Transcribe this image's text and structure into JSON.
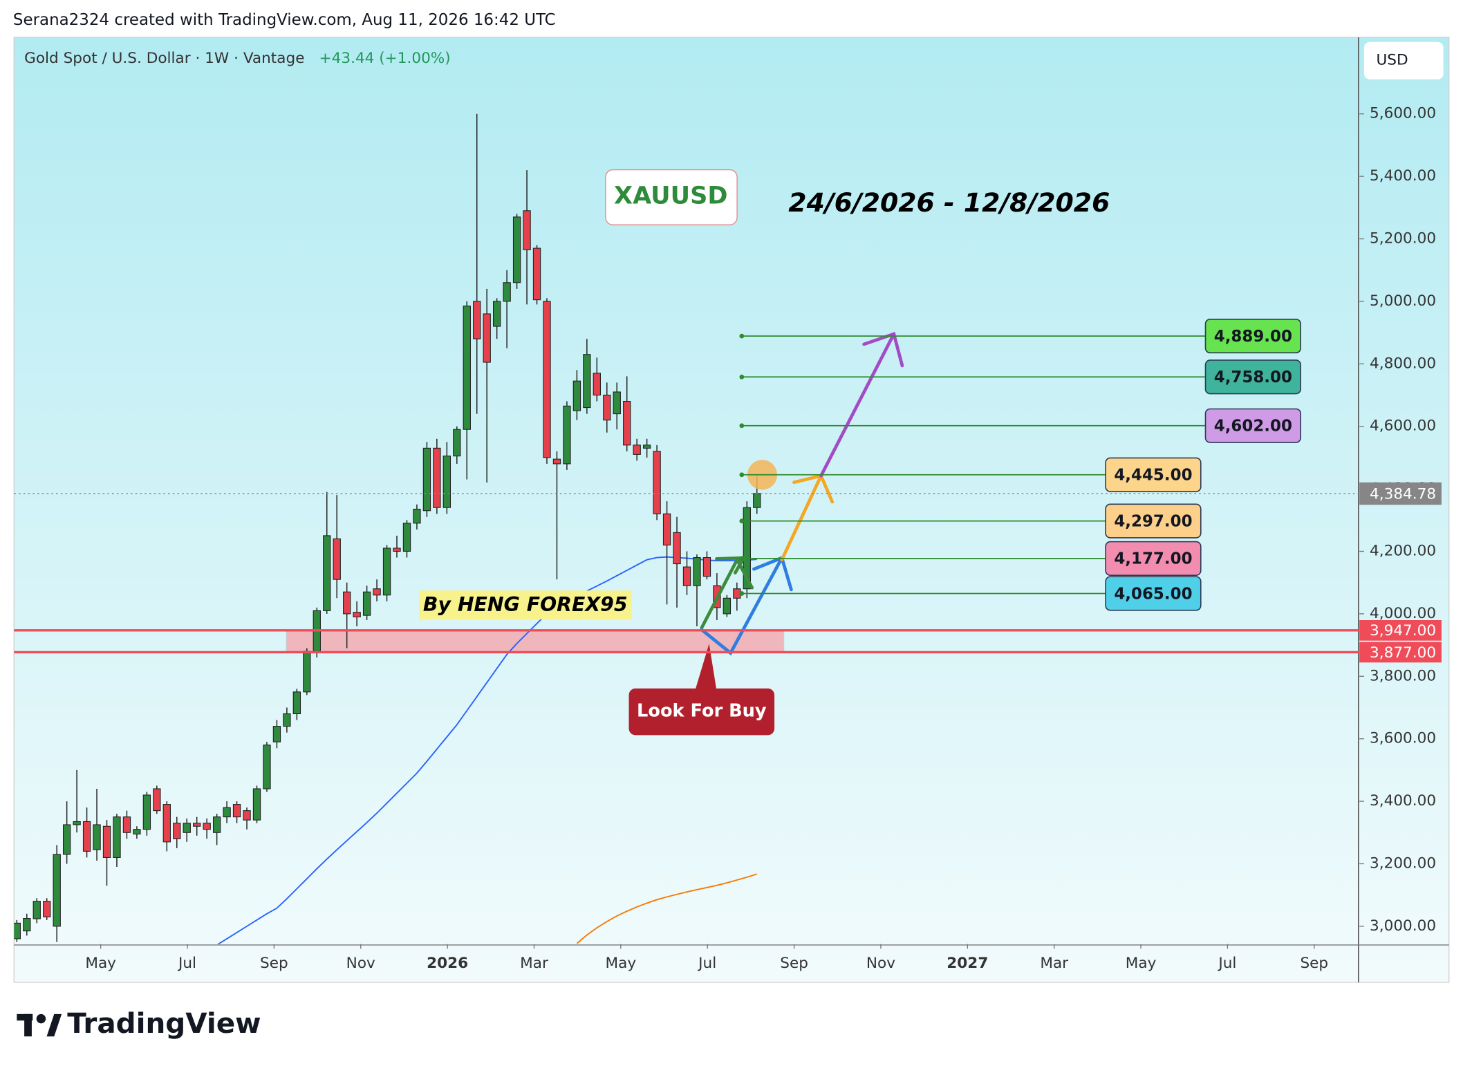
{
  "header": "Serana2324 created with TradingView.com, Aug 11, 2026 16:42 UTC",
  "brand": "TradingView",
  "chart_data": {
    "type": "candlestick",
    "title": "Gold Spot / U.S. Dollar · 1W · Vantage",
    "change": "+43.44 (+1.00%)",
    "currency": "USD",
    "up_color": "#2e8b3e",
    "down_color": "#e5414d",
    "candles": [
      [
        2960,
        3020,
        2950,
        3010
      ],
      [
        2985,
        3040,
        2970,
        3025
      ],
      [
        3024,
        3090,
        3010,
        3080
      ],
      [
        3080,
        3090,
        3020,
        3030
      ],
      [
        3000,
        3260,
        2950,
        3230
      ],
      [
        3230,
        3400,
        3200,
        3325
      ],
      [
        3325,
        3500,
        3300,
        3335
      ],
      [
        3335,
        3380,
        3220,
        3240
      ],
      [
        3245,
        3440,
        3210,
        3325
      ],
      [
        3320,
        3340,
        3130,
        3220
      ],
      [
        3220,
        3360,
        3190,
        3350
      ],
      [
        3350,
        3370,
        3280,
        3300
      ],
      [
        3295,
        3320,
        3280,
        3310
      ],
      [
        3310,
        3430,
        3290,
        3420
      ],
      [
        3440,
        3450,
        3360,
        3370
      ],
      [
        3390,
        3400,
        3240,
        3270
      ],
      [
        3330,
        3350,
        3250,
        3280
      ],
      [
        3300,
        3345,
        3270,
        3330
      ],
      [
        3330,
        3350,
        3290,
        3320
      ],
      [
        3330,
        3345,
        3280,
        3310
      ],
      [
        3300,
        3360,
        3260,
        3350
      ],
      [
        3350,
        3400,
        3330,
        3380
      ],
      [
        3390,
        3400,
        3330,
        3350
      ],
      [
        3370,
        3380,
        3310,
        3340
      ],
      [
        3340,
        3450,
        3330,
        3440
      ],
      [
        3440,
        3590,
        3430,
        3580
      ],
      [
        3590,
        3660,
        3570,
        3640
      ],
      [
        3640,
        3700,
        3620,
        3680
      ],
      [
        3680,
        3760,
        3660,
        3750
      ],
      [
        3750,
        3890,
        3740,
        3880
      ],
      [
        3880,
        4020,
        3860,
        4010
      ],
      [
        4010,
        4390,
        4000,
        4250
      ],
      [
        4240,
        4380,
        4050,
        4110
      ],
      [
        4070,
        4100,
        3890,
        4000
      ],
      [
        4005,
        4040,
        3960,
        3990
      ],
      [
        3995,
        4090,
        3980,
        4070
      ],
      [
        4080,
        4110,
        4040,
        4060
      ],
      [
        4060,
        4220,
        4040,
        4210
      ],
      [
        4210,
        4250,
        4180,
        4200
      ],
      [
        4200,
        4300,
        4180,
        4290
      ],
      [
        4290,
        4350,
        4270,
        4335
      ],
      [
        4330,
        4550,
        4310,
        4530
      ],
      [
        4530,
        4560,
        4320,
        4340
      ],
      [
        4340,
        4550,
        4320,
        4505
      ],
      [
        4505,
        4600,
        4480,
        4590
      ],
      [
        4590,
        5000,
        4430,
        4985
      ],
      [
        5000,
        5600,
        4640,
        4880
      ],
      [
        4960,
        5040,
        4420,
        4805
      ],
      [
        4920,
        5010,
        4880,
        5000
      ],
      [
        5000,
        5100,
        4850,
        5060
      ],
      [
        5060,
        5280,
        5040,
        5270
      ],
      [
        5290,
        5420,
        4990,
        5165
      ],
      [
        5170,
        5180,
        4990,
        5005
      ],
      [
        5000,
        5010,
        4480,
        4500
      ],
      [
        4495,
        4520,
        4110,
        4480
      ],
      [
        4480,
        4680,
        4460,
        4665
      ],
      [
        4650,
        4780,
        4620,
        4745
      ],
      [
        4660,
        4880,
        4640,
        4830
      ],
      [
        4770,
        4820,
        4680,
        4700
      ],
      [
        4700,
        4740,
        4580,
        4620
      ],
      [
        4640,
        4740,
        4590,
        4710
      ],
      [
        4680,
        4760,
        4520,
        4540
      ],
      [
        4540,
        4560,
        4490,
        4510
      ],
      [
        4530,
        4560,
        4500,
        4540
      ],
      [
        4520,
        4540,
        4300,
        4320
      ],
      [
        4320,
        4360,
        4030,
        4220
      ],
      [
        4260,
        4310,
        4020,
        4160
      ],
      [
        4150,
        4200,
        4060,
        4090
      ],
      [
        4090,
        4190,
        3960,
        4180
      ],
      [
        4180,
        4200,
        4110,
        4120
      ],
      [
        4090,
        4130,
        3980,
        4020
      ],
      [
        4000,
        4060,
        3990,
        4050
      ],
      [
        4080,
        4100,
        4010,
        4050
      ],
      [
        4080,
        4360,
        4050,
        4340
      ],
      [
        4340,
        4440,
        4320,
        4385
      ]
    ],
    "moving_averages": [
      {
        "color": "#2962ff",
        "values": [
          null,
          null,
          null,
          null,
          null,
          null,
          null,
          null,
          null,
          null,
          null,
          null,
          null,
          null,
          null,
          null,
          null,
          null,
          null,
          null,
          2940,
          2960,
          2980,
          3000,
          3020,
          3040,
          3058,
          3088,
          3120,
          3152,
          3184,
          3215,
          3245,
          3274,
          3303,
          3332,
          3362,
          3394,
          3426,
          3458,
          3490,
          3528,
          3567,
          3606,
          3645,
          3690,
          3735,
          3780,
          3825,
          3870,
          3905,
          3937,
          3969,
          4000,
          4025,
          4041,
          4057,
          4073,
          4089,
          4105,
          4122,
          4139,
          4156,
          4173,
          4180,
          4182,
          4180,
          4178,
          4175,
          4172,
          4170,
          4170,
          4171,
          4172,
          4174
        ]
      },
      {
        "color": "#f57c00",
        "values": [
          null,
          null,
          null,
          null,
          null,
          null,
          null,
          null,
          null,
          null,
          null,
          null,
          null,
          null,
          null,
          null,
          null,
          null,
          null,
          null,
          null,
          null,
          null,
          null,
          null,
          null,
          null,
          null,
          null,
          null,
          null,
          null,
          null,
          null,
          null,
          null,
          null,
          null,
          null,
          null,
          null,
          null,
          null,
          null,
          null,
          null,
          null,
          null,
          null,
          null,
          null,
          null,
          null,
          null,
          null,
          null,
          2945,
          2972,
          2995,
          3015,
          3033,
          3048,
          3062,
          3074,
          3085,
          3094,
          3102,
          3110,
          3117,
          3124,
          3131,
          3139,
          3148,
          3157,
          3167
        ]
      }
    ],
    "ylim": [
      2943,
      5845
    ],
    "yticks": [
      {
        "value": 3000,
        "label": "3,000.00"
      },
      {
        "value": 3200,
        "label": "3,200.00"
      },
      {
        "value": 3400,
        "label": "3,400.00"
      },
      {
        "value": 3600,
        "label": "3,600.00"
      },
      {
        "value": 3800,
        "label": "3,800.00"
      },
      {
        "value": 4000,
        "label": "4,000.00"
      },
      {
        "value": 4200,
        "label": "4,200.00"
      },
      {
        "value": 4400,
        "label": "4,400.00"
      },
      {
        "value": 4600,
        "label": "4,600.00"
      },
      {
        "value": 4800,
        "label": "4,800.00"
      },
      {
        "value": 5000,
        "label": "5,000.00"
      },
      {
        "value": 5200,
        "label": "5,200.00"
      },
      {
        "value": 5400,
        "label": "5,400.00"
      },
      {
        "value": 5600,
        "label": "5,600.00"
      }
    ],
    "xlim": [
      "2025-03",
      "2027-10"
    ],
    "xticks": [
      {
        "value": "2025-05",
        "label": "May"
      },
      {
        "value": "2025-07",
        "label": "Jul"
      },
      {
        "value": "2025-09",
        "label": "Sep"
      },
      {
        "value": "2025-11",
        "label": "Nov"
      },
      {
        "value": "2026-01",
        "label": "2026"
      },
      {
        "value": "2026-03",
        "label": "Mar"
      },
      {
        "value": "2026-05",
        "label": "May"
      },
      {
        "value": "2026-07",
        "label": "Jul"
      },
      {
        "value": "2026-09",
        "label": "Sep"
      },
      {
        "value": "2026-11",
        "label": "Nov"
      },
      {
        "value": "2027-01",
        "label": "2027"
      },
      {
        "value": "2027-03",
        "label": "Mar"
      },
      {
        "value": "2027-05",
        "label": "May"
      },
      {
        "value": "2027-07",
        "label": "Jul"
      },
      {
        "value": "2027-09",
        "label": "Sep"
      }
    ],
    "last_price": {
      "value": 4384.78,
      "label": "4,384.78"
    },
    "targets": [
      {
        "value": 4889,
        "label": "4,889.00",
        "color": "#66e34f"
      },
      {
        "value": 4758,
        "label": "4,758.00",
        "color": "#3fb39b"
      },
      {
        "value": 4602,
        "label": "4,602.00",
        "color": "#cf9be6"
      },
      {
        "value": 4445,
        "label": "4,445.00",
        "color": "#fcd58a"
      },
      {
        "value": 4297,
        "label": "4,297.00",
        "color": "#fcd08a"
      },
      {
        "value": 4177,
        "label": "4,177.00",
        "color": "#f28db0"
      },
      {
        "value": 4065,
        "label": "4,065.00",
        "color": "#4fd0e8"
      }
    ],
    "zone": [
      {
        "value": 3947,
        "label": "3,947.00"
      },
      {
        "value": 3877,
        "label": "3,877.00"
      }
    ],
    "zone_color": "#f04b58",
    "annotations": {
      "symbol": "XAUUSD",
      "period": "24/6/2026 - 12/8/2026",
      "author": "By HENG FOREX95",
      "callout": "Look For Buy"
    }
  }
}
